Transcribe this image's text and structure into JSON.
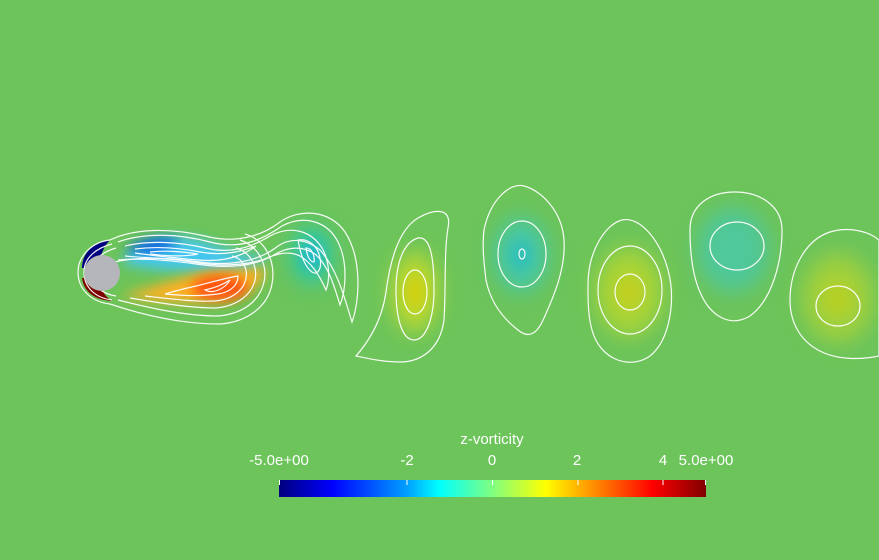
{
  "scalar_field": "z-vorticity",
  "colorbar": {
    "title": "z-vorticity",
    "range": [
      -5.0,
      5.0
    ],
    "min_label": "-5.0e+00",
    "max_label": "5.0e+00",
    "ticks": [
      {
        "value": -2,
        "label": "-2"
      },
      {
        "value": 0,
        "label": "0"
      },
      {
        "value": 2,
        "label": "2"
      },
      {
        "value": 4,
        "label": "4"
      }
    ],
    "colormap_stops": [
      "#00007f",
      "#0000ff",
      "#00a0ff",
      "#00ffff",
      "#80ff80",
      "#ffff00",
      "#ff8000",
      "#ff0000",
      "#7f0000"
    ]
  },
  "colors": {
    "background_zero_vorticity": "#6cc45a",
    "cylinder": "#b4b6ba",
    "contour_lines": "#ffffff"
  },
  "objects": {
    "cylinder": "circular obstacle",
    "wake": "von Karman vortex street"
  }
}
